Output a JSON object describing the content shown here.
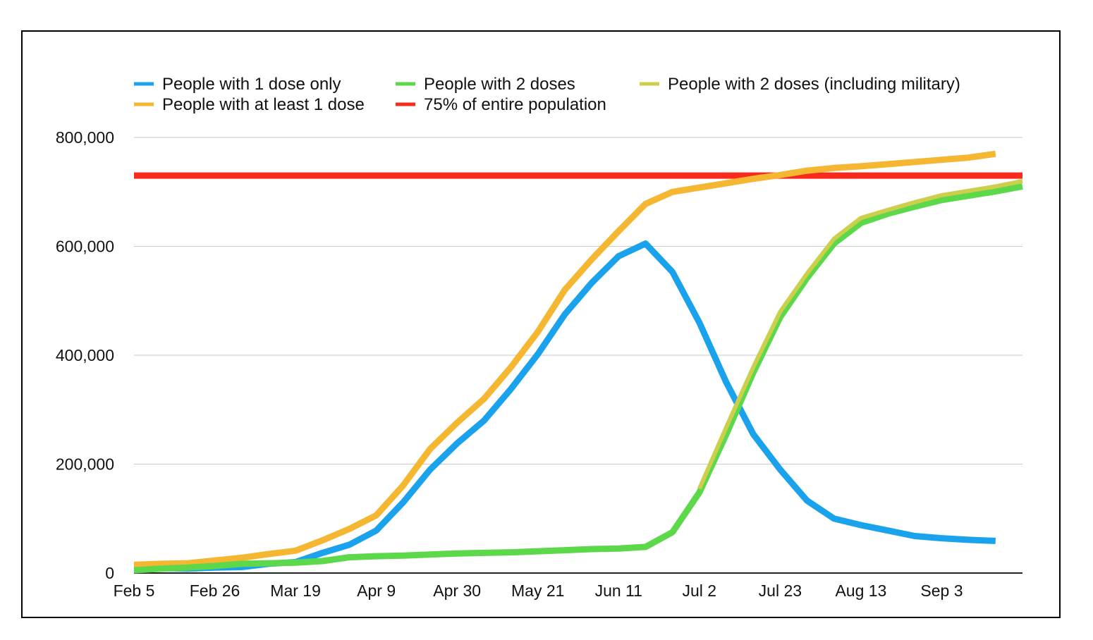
{
  "chart_data": {
    "type": "line",
    "title": "",
    "xlabel": "",
    "ylabel": "",
    "ylim": [
      0,
      800000
    ],
    "yticks": [
      0,
      200000,
      400000,
      600000,
      800000
    ],
    "ytick_labels": [
      "0",
      "200,000",
      "400,000",
      "600,000",
      "800,000"
    ],
    "xtick_labels": [
      "Feb 5",
      "Feb 26",
      "Mar 19",
      "Apr 9",
      "Apr 30",
      "May 21",
      "Jun 11",
      "Jul 2",
      "Jul 23",
      "Aug 13",
      "Sep 3"
    ],
    "x_weeks": [
      0,
      1,
      2,
      3,
      4,
      5,
      6,
      7,
      8,
      9,
      10,
      11,
      12,
      13,
      14,
      15,
      16,
      17,
      18,
      19,
      20,
      21,
      22,
      23,
      24,
      25,
      26,
      27,
      28,
      29,
      30,
      31,
      32,
      33
    ],
    "legend_position": "top-left",
    "series": [
      {
        "name": "People with 1 dose only",
        "color": "#1aa3ec",
        "values": [
          10000,
          9000,
          8000,
          10000,
          11000,
          17000,
          20000,
          37000,
          52000,
          78000,
          130000,
          190000,
          238000,
          280000,
          338000,
          402000,
          475000,
          533000,
          582000,
          605000,
          553000,
          460000,
          350000,
          255000,
          190000,
          133000,
          100000,
          88000,
          78000,
          68000,
          64000,
          61000,
          59000
        ]
      },
      {
        "name": "People with at least 1 dose",
        "color": "#f5b731",
        "values": [
          15000,
          17000,
          18000,
          23000,
          28000,
          35000,
          41000,
          60000,
          81000,
          106000,
          161000,
          228000,
          276000,
          320000,
          378000,
          443000,
          520000,
          576000,
          628000,
          678000,
          700000,
          708000,
          716000,
          724000,
          731000,
          739000,
          744000,
          747000,
          751000,
          755000,
          759000,
          763000,
          770000
        ]
      },
      {
        "name": "People with 2 doses",
        "color": "#5cd84a",
        "start_index": 0,
        "values": [
          5000,
          8000,
          10000,
          13000,
          17000,
          18000,
          19000,
          22000,
          29000,
          31000,
          32000,
          34000,
          36000,
          37000,
          38000,
          40000,
          42000,
          44000,
          45000,
          48000,
          75000,
          148000,
          255000,
          368000,
          470000,
          542000,
          605000,
          643000,
          660000,
          673000,
          685000,
          693000,
          701000,
          710000
        ]
      },
      {
        "name": "People with 2 doses (including military)",
        "color": "#cccf4c",
        "start_index": 21,
        "values": [
          155000,
          268000,
          378000,
          480000,
          550000,
          614000,
          652000,
          667000,
          681000,
          694000,
          702000,
          710000,
          720000
        ]
      },
      {
        "name": "75% of entire population",
        "color": "#f92a1c",
        "values": [
          730000,
          730000
        ]
      }
    ]
  }
}
